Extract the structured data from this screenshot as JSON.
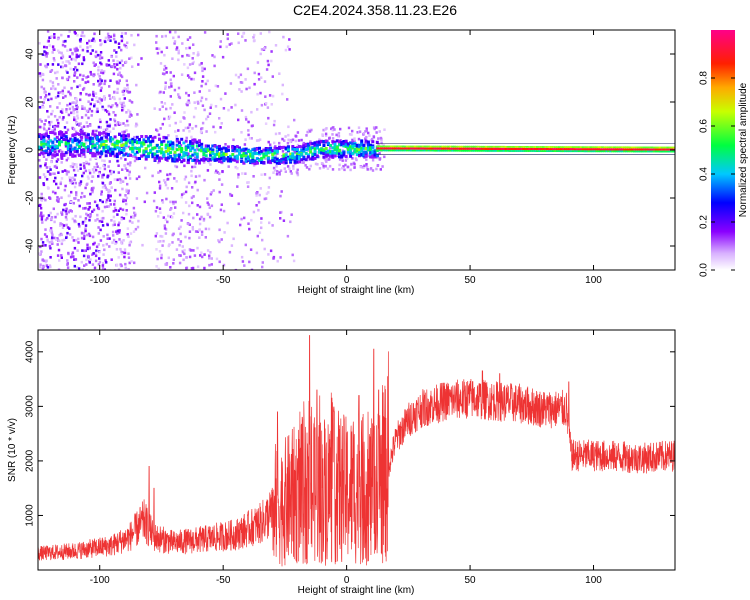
{
  "title": "C2E4.2024.358.11.23.E26",
  "chart_data": [
    {
      "type": "heatmap",
      "xlabel": "Height of straight line (km)",
      "ylabel": "Frequency (Hz)",
      "xlim": [
        -125,
        133
      ],
      "ylim": [
        -50,
        50
      ],
      "xticks": [
        -100,
        -50,
        0,
        50,
        100
      ],
      "yticks": [
        -40,
        -20,
        0,
        20,
        40
      ],
      "colorbar": {
        "label": "Normalized spectral amplitude",
        "range": [
          0,
          1
        ],
        "ticks": [
          "0.0",
          "0.2",
          "0.4",
          "0.6",
          "0.8"
        ],
        "colormap": [
          "#ffffff",
          "#cc88ff",
          "#7a00ff",
          "#0000ff",
          "#00ffff",
          "#00ff00",
          "#ffff00",
          "#ff8800",
          "#ff0000",
          "#ff0088"
        ]
      },
      "features": {
        "signal_center_hz": [
          [
            -125,
            3
          ],
          [
            -100,
            3
          ],
          [
            -75,
            1
          ],
          [
            -50,
            -1
          ],
          [
            -35,
            -2
          ],
          [
            -20,
            -1
          ],
          [
            -10,
            1
          ],
          [
            0,
            1
          ],
          [
            12,
            1
          ],
          [
            133,
            0.5
          ]
        ],
        "strong_tone_start_km": 12,
        "scatter_extent_km": [
          -125,
          -30
        ]
      }
    },
    {
      "type": "line",
      "xlabel": "Height of straight line (km)",
      "ylabel": "SNR (10 * v/v)",
      "xlim": [
        -125,
        133
      ],
      "ylim": [
        0,
        4400
      ],
      "xticks": [
        -100,
        -50,
        0,
        50,
        100
      ],
      "yticks": [
        1000,
        2000,
        3000,
        4000
      ],
      "series": [
        {
          "color": "#ee3333",
          "envelope": [
            [
              -125,
              300
            ],
            [
              -110,
              350
            ],
            [
              -95,
              450
            ],
            [
              -88,
              600
            ],
            [
              -82,
              900
            ],
            [
              -78,
              600
            ],
            [
              -70,
              500
            ],
            [
              -60,
              550
            ],
            [
              -45,
              650
            ],
            [
              -35,
              850
            ],
            [
              -28,
              1150
            ],
            [
              -20,
              1400
            ],
            [
              -12,
              1450
            ],
            [
              -5,
              1550
            ],
            [
              0,
              1450
            ],
            [
              5,
              1500
            ],
            [
              12,
              1400
            ],
            [
              17,
              1900
            ],
            [
              20,
              2400
            ],
            [
              25,
              2750
            ],
            [
              30,
              2950
            ],
            [
              40,
              3100
            ],
            [
              50,
              3150
            ],
            [
              60,
              3100
            ],
            [
              70,
              3050
            ],
            [
              80,
              2950
            ],
            [
              89,
              2950
            ],
            [
              91,
              2100
            ],
            [
              100,
              2100
            ],
            [
              110,
              2080
            ],
            [
              120,
              2050
            ],
            [
              133,
              2100
            ]
          ],
          "spikes": [
            [
              -80,
              1900
            ],
            [
              -78,
              1500
            ],
            [
              -28,
              2900
            ],
            [
              -18,
              2800
            ],
            [
              -15,
              4300
            ],
            [
              -12,
              3300
            ],
            [
              -5,
              2900
            ],
            [
              5,
              3200
            ],
            [
              11,
              4050
            ],
            [
              13,
              3300
            ],
            [
              55,
              3650
            ],
            [
              62,
              3600
            ],
            [
              90,
              3450
            ]
          ]
        }
      ]
    }
  ]
}
